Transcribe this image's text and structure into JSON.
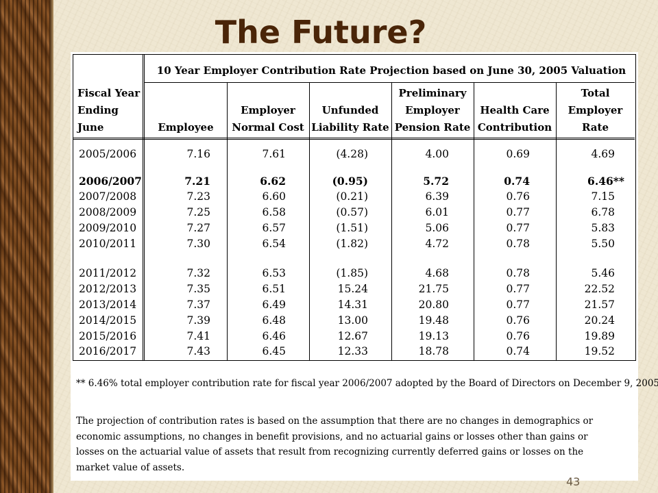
{
  "slide": {
    "title": "The Future?",
    "number": "43"
  },
  "table": {
    "caption": "10 Year Employer Contribution Rate Projection based on June 30, 2005 Valuation",
    "headers": [
      [
        "Fiscal Year",
        "Ending June"
      ],
      [
        "Employee"
      ],
      [
        "Employer",
        "Normal Cost"
      ],
      [
        "Unfunded",
        "Liability Rate"
      ],
      [
        "Preliminary",
        "Employer",
        "Pension Rate"
      ],
      [
        "Health Care",
        "Contribution"
      ],
      [
        "Total",
        "Employer",
        "Rate"
      ]
    ],
    "rows": [
      {
        "bold": false,
        "cells": [
          "2005/2006",
          "7.16",
          "7.61",
          "(4.28)",
          "4.00",
          "0.69",
          "4.69"
        ]
      },
      {
        "bold": true,
        "cells": [
          "2006/2007",
          "7.21",
          "6.62",
          "(0.95)",
          "5.72",
          "0.74",
          "6.46**"
        ]
      },
      {
        "bold": false,
        "cells": [
          "2007/2008",
          "7.23",
          "6.60",
          "(0.21)",
          "6.39",
          "0.76",
          "7.15"
        ]
      },
      {
        "bold": false,
        "cells": [
          "2008/2009",
          "7.25",
          "6.58",
          "(0.57)",
          "6.01",
          "0.77",
          "6.78"
        ]
      },
      {
        "bold": false,
        "cells": [
          "2009/2010",
          "7.27",
          "6.57",
          "(1.51)",
          "5.06",
          "0.77",
          "5.83"
        ]
      },
      {
        "bold": false,
        "cells": [
          "2010/2011",
          "7.30",
          "6.54",
          "(1.82)",
          "4.72",
          "0.78",
          "5.50"
        ]
      },
      {
        "bold": false,
        "cells": [
          "2011/2012",
          "7.32",
          "6.53",
          "(1.85)",
          "4.68",
          "0.78",
          "5.46"
        ]
      },
      {
        "bold": false,
        "cells": [
          "2012/2013",
          "7.35",
          "6.51",
          "15.24",
          "21.75",
          "0.77",
          "22.52"
        ]
      },
      {
        "bold": false,
        "cells": [
          "2013/2014",
          "7.37",
          "6.49",
          "14.31",
          "20.80",
          "0.77",
          "21.57"
        ]
      },
      {
        "bold": false,
        "cells": [
          "2014/2015",
          "7.39",
          "6.48",
          "13.00",
          "19.48",
          "0.76",
          "20.24"
        ]
      },
      {
        "bold": false,
        "cells": [
          "2015/2016",
          "7.41",
          "6.46",
          "12.67",
          "19.13",
          "0.76",
          "19.89"
        ]
      },
      {
        "bold": false,
        "cells": [
          "2016/2017",
          "7.43",
          "6.45",
          "12.33",
          "18.78",
          "0.74",
          "19.52"
        ]
      }
    ]
  },
  "footnote": "** 6.46% total employer contribution rate for fiscal year 2006/2007 adopted by the Board of Directors on December 9, 2005.",
  "assumption_lines": [
    "The projection of contribution rates is based on the assumption that there are no changes in demographics or",
    "economic assumptions, no changes in benefit provisions, and no actuarial gains or losses other than gains or",
    "losses on the actuarial value of assets that result from recognizing currently deferred gains or losses on the",
    "market value of assets."
  ]
}
